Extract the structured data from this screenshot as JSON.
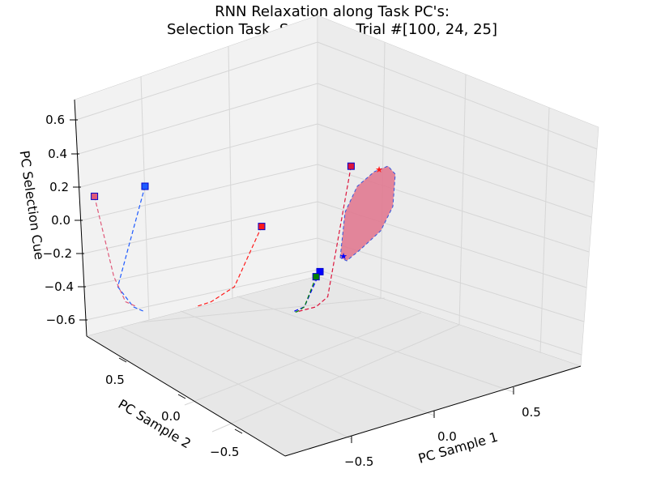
{
  "chart_data": {
    "type": "line",
    "subtype": "3d-trajectory",
    "title_line1": "RNN Relaxation along Task PC's:",
    "title_line2": "Selection Task, Selection, Trial #[100, 24, 25]",
    "xlabel": "PC Sample 1",
    "ylabel": "PC Sample 2",
    "zlabel": "PC Selection Cue",
    "x_ticks": [
      "−0.5",
      "0.0",
      "0.5"
    ],
    "y_ticks": [
      "0.5",
      "0.0",
      "−0.5"
    ],
    "z_ticks": [
      "0.6",
      "0.4",
      "0.2",
      "0.0",
      "−0.2",
      "−0.4",
      "−0.6"
    ],
    "grid": true,
    "series": [
      {
        "color": "#dc143c",
        "values": [
          [
            0.58,
            0.54
          ],
          [
            0.52,
            0.28
          ],
          [
            0.49,
            0.26
          ],
          [
            0.44,
            0.25
          ]
        ]
      },
      {
        "color": "#0000ff",
        "values": [
          [
            0.5,
            0.33
          ],
          [
            0.46,
            0.26
          ],
          [
            0.43,
            0.25
          ],
          [
            0.43,
            0.25
          ]
        ]
      },
      {
        "color": "#008000",
        "values": [
          [
            0.49,
            0.32
          ],
          [
            0.46,
            0.26
          ],
          [
            0.44,
            0.25
          ],
          [
            0.43,
            0.25
          ]
        ]
      },
      {
        "color": "#1e5aff",
        "values": [
          [
            0.05,
            0.5
          ],
          [
            -0.02,
            0.3
          ],
          [
            0.02,
            0.26
          ],
          [
            0.05,
            0.25
          ]
        ]
      },
      {
        "color": "#e05a7a",
        "values": [
          [
            -0.08,
            0.48
          ],
          [
            -0.03,
            0.32
          ],
          [
            0.0,
            0.27
          ],
          [
            0.03,
            0.26
          ]
        ]
      },
      {
        "color": "#ff1a1a",
        "values": [
          [
            0.35,
            0.42
          ],
          [
            0.28,
            0.3
          ],
          [
            0.22,
            0.27
          ],
          [
            0.18,
            0.26
          ]
        ]
      }
    ]
  }
}
